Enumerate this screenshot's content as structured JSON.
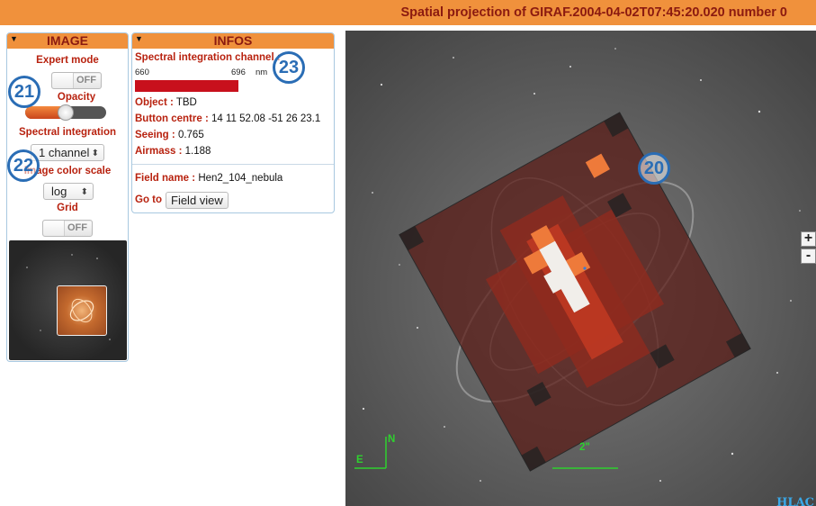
{
  "header": {
    "title": "Spatial projection of GIRAF.2004-04-02T07:45:20.020 number 0"
  },
  "image_panel": {
    "title": "IMAGE",
    "expert_mode_label": "Expert mode",
    "expert_mode_state": "OFF",
    "opacity_label": "Opacity",
    "opacity_value": 0.5,
    "spectral_integration_label": "Spectral integration",
    "spectral_integration_value": "1 channel",
    "color_scale_label": "Image color scale",
    "color_scale_value": "log",
    "grid_label": "Grid",
    "grid_state": "OFF"
  },
  "infos_panel": {
    "title": "INFOS",
    "spectral_channel_label": "Spectral integration channel :",
    "channel_min": "660",
    "channel_max": "696",
    "channel_unit": "nm",
    "object_label": "Object :",
    "object_value": "TBD",
    "button_centre_label": "Button centre :",
    "button_centre_value": "14 11 52.08 -51 26 23.1",
    "seeing_label": "Seeing :",
    "seeing_value": "0.765",
    "airmass_label": "Airmass :",
    "airmass_value": "1.188",
    "field_name_label": "Field name :",
    "field_name_value": "Hen2_104_nebula",
    "goto_label": "Go to :",
    "goto_button": "Field view"
  },
  "viewer": {
    "compass_east": "E",
    "compass_north": "N",
    "scale_bar_label": "2\"",
    "zoom_in": "+",
    "zoom_out": "-",
    "logo": "HLAC"
  },
  "markers": [
    "20",
    "21",
    "22",
    "23"
  ],
  "colors": {
    "header_bg": "#f0913c",
    "title_text": "#8b1a10",
    "label_red": "#b8220f",
    "spectral_bar": "#c8101c",
    "marker_blue": "#2a6db5",
    "overlay_green": "#2fd12f"
  }
}
